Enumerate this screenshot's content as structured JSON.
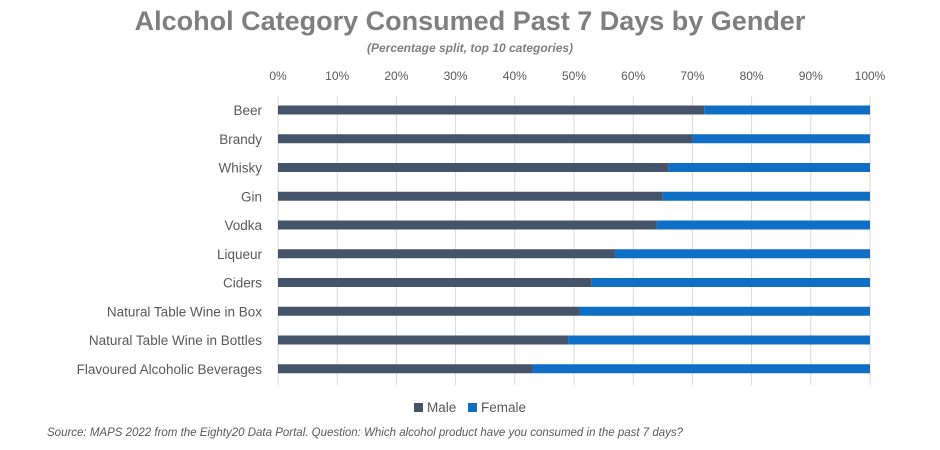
{
  "chart_data": {
    "type": "bar",
    "orientation": "horizontal",
    "stacked": true,
    "title": "Alcohol Category Consumed Past 7 Days by Gender",
    "subtitle": "(Percentage split, top 10 categories)",
    "categories": [
      "Beer",
      "Brandy",
      "Whisky",
      "Gin",
      "Vodka",
      "Liqueur",
      "Ciders",
      "Natural Table Wine in Box",
      "Natural Table Wine in Bottles",
      "Flavoured Alcoholic Beverages"
    ],
    "series": [
      {
        "name": "Male",
        "color": "#44546a",
        "values": [
          72,
          70,
          66,
          65,
          64,
          57,
          53,
          51,
          49,
          43
        ]
      },
      {
        "name": "Female",
        "color": "#0f6fc6",
        "values": [
          28,
          30,
          34,
          35,
          36,
          43,
          47,
          49,
          51,
          57
        ]
      }
    ],
    "xlim": [
      0,
      100
    ],
    "xticks": [
      "0%",
      "10%",
      "20%",
      "30%",
      "40%",
      "50%",
      "60%",
      "70%",
      "80%",
      "90%",
      "100%"
    ],
    "axis_position": "top",
    "grid": true,
    "legend_position": "bottom",
    "source": "Source: MAPS 2022 from the Eighty20 Data Portal. Question: Which alcohol product have you consumed in the past 7 days?"
  }
}
